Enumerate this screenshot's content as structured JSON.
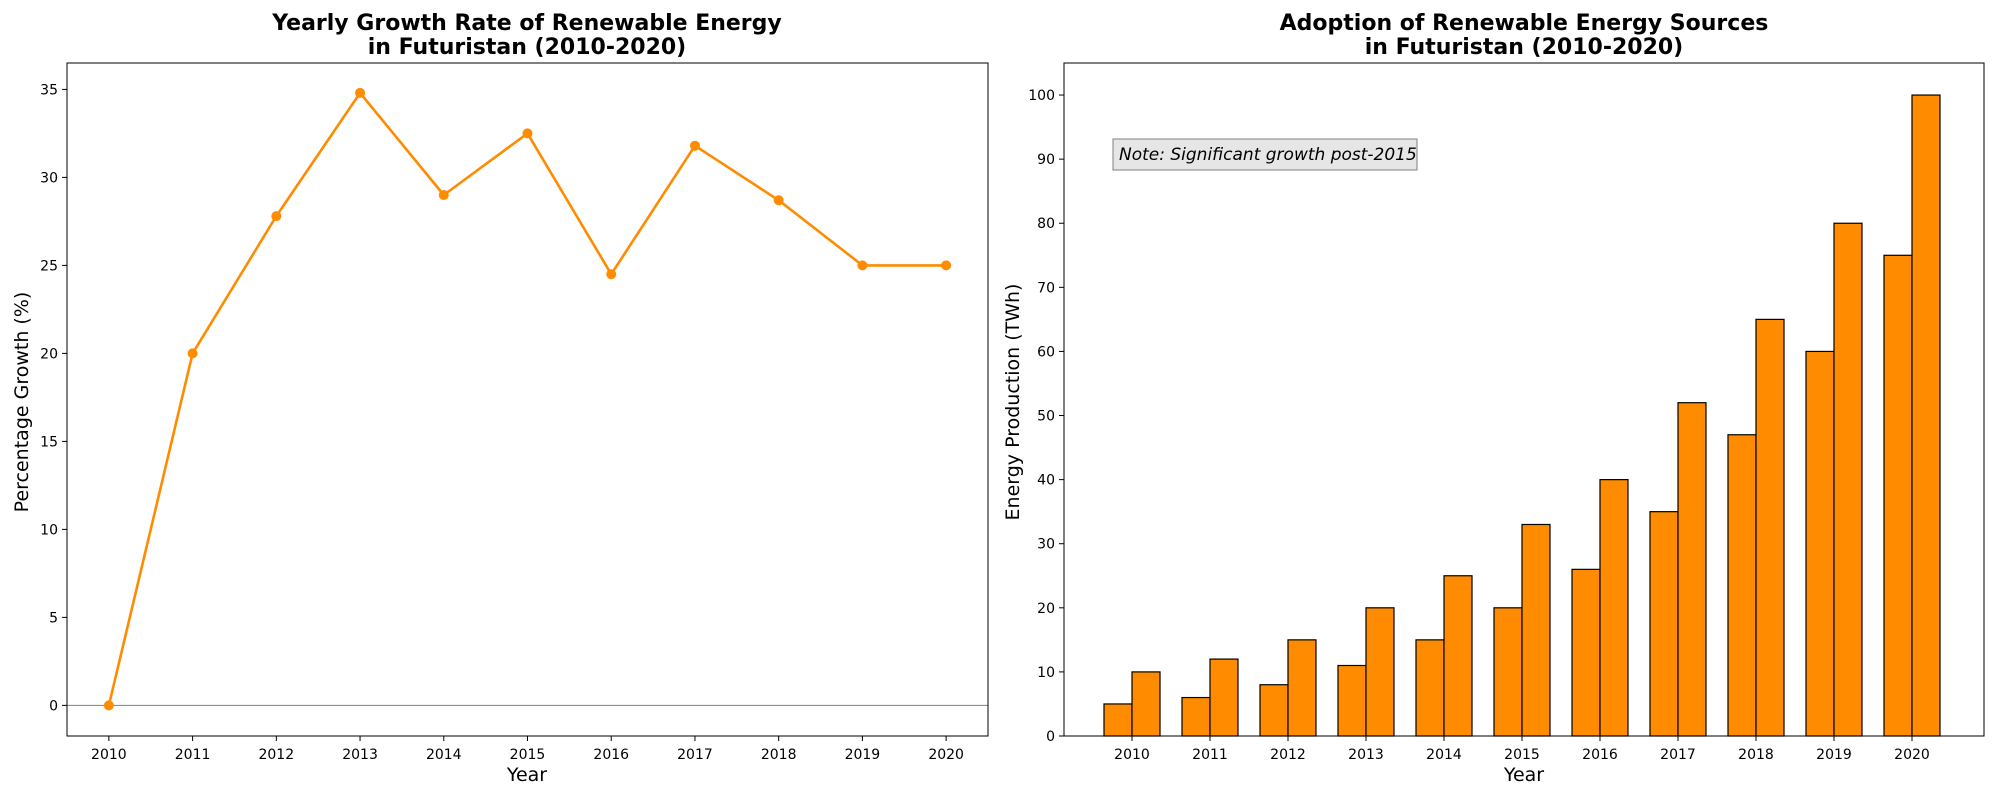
{
  "chart_data": [
    {
      "type": "line",
      "title_lines": [
        "Yearly Growth Rate of Renewable Energy",
        "in Futuristan (2010-2020)"
      ],
      "xlabel": "Year",
      "ylabel": "Percentage Growth (%)",
      "x": [
        2010,
        2011,
        2012,
        2013,
        2014,
        2015,
        2016,
        2017,
        2018,
        2019,
        2020
      ],
      "series": [
        {
          "values": [
            0,
            20.0,
            27.8,
            34.8,
            29.0,
            32.5,
            24.5,
            31.8,
            28.7,
            25.0,
            25.0
          ]
        }
      ],
      "xlim": [
        2009.5,
        2020.5
      ],
      "ylim": [
        -1.74,
        36.5
      ],
      "yticks": [
        0,
        5,
        10,
        15,
        20,
        25,
        30,
        35
      ],
      "reference_line_y": 0,
      "grid": false,
      "colors": {
        "line": "#ff8c00",
        "reference_line": "#808080"
      }
    },
    {
      "type": "bar",
      "title_lines": [
        "Adoption of Renewable Energy Sources",
        "in Futuristan (2010-2020)"
      ],
      "xlabel": "Year",
      "ylabel": "Energy Production (TWh)",
      "categories": [
        "2010",
        "2011",
        "2012",
        "2013",
        "2014",
        "2015",
        "2016",
        "2017",
        "2018",
        "2019",
        "2020"
      ],
      "series": [
        {
          "values": [
            5,
            6,
            8,
            11,
            15,
            20,
            26,
            35,
            47,
            60,
            75
          ]
        },
        {
          "values": [
            10,
            12,
            15,
            20,
            25,
            33,
            40,
            52,
            65,
            80,
            100
          ]
        }
      ],
      "ylim": [
        0,
        105
      ],
      "yticks": [
        0,
        10,
        20,
        30,
        40,
        50,
        60,
        70,
        80,
        90,
        100
      ],
      "annotation": "Note: Significant growth post-2015",
      "grid": false,
      "colors": {
        "bar_fill": "#ff8c00",
        "bar_edge": "#000000",
        "note_box": "#e6e6e6",
        "note_edge": "#808080"
      }
    }
  ]
}
